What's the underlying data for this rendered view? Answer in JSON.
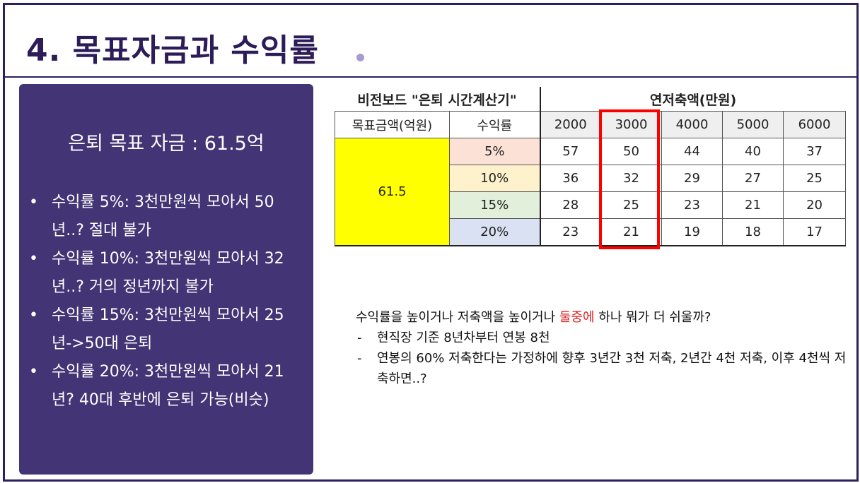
{
  "slide": {
    "title": "4. 목표자금과 수익률"
  },
  "panel": {
    "heading": "은퇴 목표 자금 : 61.5억",
    "bullets": [
      "수익률 5%: 3천만원씩 모아서 50년..? 절대 불가",
      "수익률 10%: 3천만원씩 모아서 32년..? 거의 정년까지 불가",
      "수익률 15%: 3천만원씩 모아서 25년->50대 은퇴",
      "수익률 20%: 3천만원씩 모아서 21년? 40대 후반에 은퇴 가능(비슷)"
    ]
  },
  "calculator": {
    "title": "비전보드 \"은퇴 시간계산기\"",
    "annual_savings_title": "연저축액(만원)",
    "goal_header": "목표금액(억원)",
    "rate_header": "수익률",
    "amounts": [
      "2000",
      "3000",
      "4000",
      "5000",
      "6000"
    ],
    "goal_value": "61.5",
    "rows": [
      {
        "rate": "5%",
        "years": [
          "57",
          "50",
          "44",
          "40",
          "37"
        ]
      },
      {
        "rate": "10%",
        "years": [
          "36",
          "32",
          "29",
          "27",
          "25"
        ]
      },
      {
        "rate": "15%",
        "years": [
          "28",
          "25",
          "23",
          "21",
          "20"
        ]
      },
      {
        "rate": "20%",
        "years": [
          "23",
          "21",
          "19",
          "18",
          "17"
        ]
      }
    ],
    "highlight_color": "#ff0000",
    "rate_colors": [
      "#fbe1d6",
      "#fef2cc",
      "#e2efda",
      "#d9e1f2"
    ],
    "goal_color": "#ffff00"
  },
  "note": {
    "question_part1": "수익률을 높이거나 저축액을 높이거나 ",
    "question_red": "둘중에",
    "question_part2": " 하나 뭐가 더 쉬울까?",
    "items": [
      "현직장 기준 8년차부터 연봉 8천",
      "연봉의 60% 저축한다는 가정하에 향후 3년간 3천 저축, 2년간 4천 저축, 이후 4천씩 저축하면..?"
    ]
  },
  "colors": {
    "title": "#2c1c57",
    "panel_bg": "#433475",
    "accent_dot": "#a79bd1"
  }
}
